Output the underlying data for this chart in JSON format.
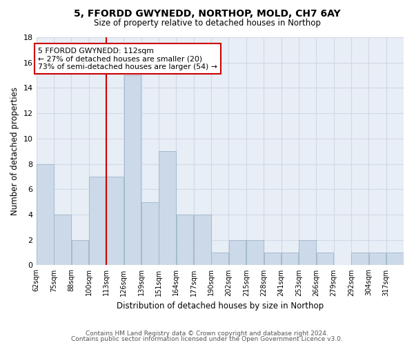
{
  "title": "5, FFORDD GWYNEDD, NORTHOP, MOLD, CH7 6AY",
  "subtitle": "Size of property relative to detached houses in Northop",
  "xlabel": "Distribution of detached houses by size in Northop",
  "ylabel": "Number of detached properties",
  "bin_labels": [
    "62sqm",
    "75sqm",
    "88sqm",
    "100sqm",
    "113sqm",
    "126sqm",
    "139sqm",
    "151sqm",
    "164sqm",
    "177sqm",
    "190sqm",
    "202sqm",
    "215sqm",
    "228sqm",
    "241sqm",
    "253sqm",
    "266sqm",
    "279sqm",
    "292sqm",
    "304sqm",
    "317sqm"
  ],
  "counts": [
    8,
    4,
    2,
    7,
    7,
    15,
    5,
    9,
    4,
    4,
    1,
    2,
    2,
    1,
    1,
    2,
    1,
    0,
    1,
    1,
    1
  ],
  "bar_color": "#ccd9e8",
  "bar_edgecolor": "#9db5c8",
  "marker_bin_index": 4,
  "marker_color": "#cc0000",
  "annotation_text": "5 FFORDD GWYNEDD: 112sqm\n← 27% of detached houses are smaller (20)\n73% of semi-detached houses are larger (54) →",
  "annotation_box_edgecolor": "#cc0000",
  "ylim": [
    0,
    18
  ],
  "yticks": [
    0,
    2,
    4,
    6,
    8,
    10,
    12,
    14,
    16,
    18
  ],
  "grid_color": "#d0d8e8",
  "background_color": "#e8eef5",
  "footer1": "Contains HM Land Registry data © Crown copyright and database right 2024.",
  "footer2": "Contains public sector information licensed under the Open Government Licence v3.0."
}
